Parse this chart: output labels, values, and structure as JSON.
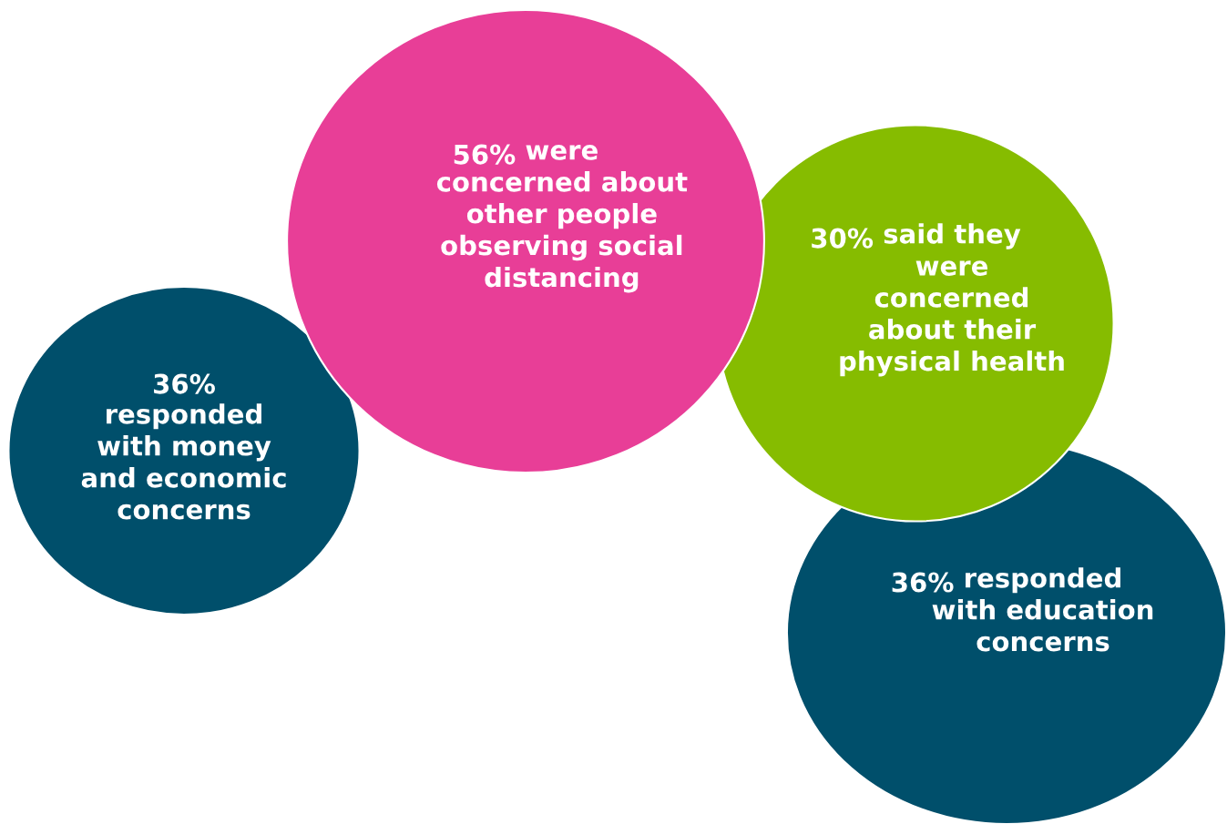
{
  "chart_data": {
    "type": "other",
    "categories": [
      "responded\nwith money\nand economic\nconcerns",
      "responded\nwith education\nconcerns",
      "said they\nwere\nconcerned\nabout their\nphysical health",
      "were\nconcerned about\nother people\nobserving social\ndistancing"
    ],
    "values": [
      36,
      36,
      30,
      56
    ],
    "value_labels": [
      "36%",
      "36%",
      "30%",
      "56%"
    ],
    "colors": [
      "#004f6b",
      "#004f6b",
      "#86bc00",
      "#e83e97"
    ]
  }
}
